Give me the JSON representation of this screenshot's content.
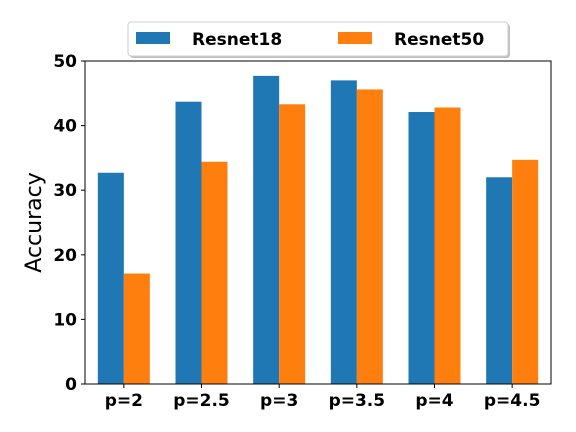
{
  "chart_data": {
    "type": "bar",
    "title": "",
    "xlabel": "",
    "ylabel": "Accuracy",
    "categories": [
      "p=2",
      "p=2.5",
      "p=3",
      "p=3.5",
      "p=4",
      "p=4.5"
    ],
    "series": [
      {
        "name": "Resnet18",
        "color": "#1f77b4",
        "values": [
          32.7,
          43.7,
          47.7,
          47.0,
          42.1,
          32.0
        ]
      },
      {
        "name": "Resnet50",
        "color": "#ff7f0e",
        "values": [
          17.1,
          34.4,
          43.3,
          45.6,
          42.8,
          34.7
        ]
      }
    ],
    "ylim": [
      0,
      50
    ],
    "yticks": [
      0,
      10,
      20,
      30,
      40,
      50
    ],
    "grid": false,
    "legend_position": "top-center"
  }
}
